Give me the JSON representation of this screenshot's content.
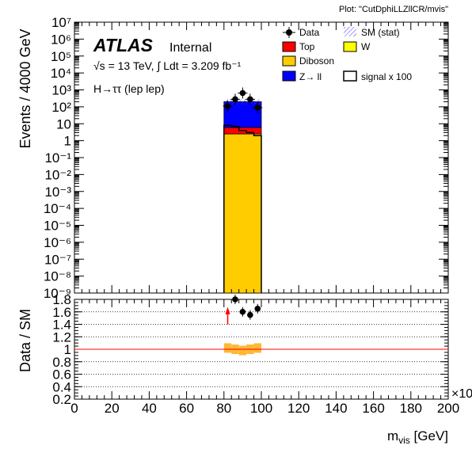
{
  "plot_label": "Plot: \"CutDphiLLZllCR/mvis\"",
  "atlas": {
    "brand": "ATLAS",
    "status": "Internal",
    "energy_line": "√s = 13 TeV, ∫ Ldt = 3.209 fb⁻¹",
    "channel": "H→ττ (lep lep)"
  },
  "legend": [
    {
      "label": "Data",
      "kind": "data",
      "color": "#000000"
    },
    {
      "label": "SM (stat)",
      "kind": "hatch",
      "color": "#3a3aff"
    },
    {
      "label": "Top",
      "kind": "fill",
      "color": "#ff0000"
    },
    {
      "label": "W",
      "kind": "fill",
      "color": "#ffff00"
    },
    {
      "label": "Diboson",
      "kind": "fill",
      "color": "#ffcc00"
    },
    {
      "label": "Z→ ll",
      "kind": "fill",
      "color": "#0000ff"
    },
    {
      "label": "signal x 100",
      "kind": "outline",
      "color": "#000000"
    }
  ],
  "chart_data": [
    {
      "type": "bar",
      "stacked": true,
      "ylabel": "Events / 4000 GeV",
      "yscale": "log",
      "ylim": [
        1e-09,
        10000000.0
      ],
      "xlim": [
        0,
        200
      ],
      "x_ticks": [
        "0",
        "20",
        "40",
        "60",
        "80",
        "100",
        "120",
        "140",
        "160",
        "180",
        "200"
      ],
      "y_tick_labels": [
        "10⁻⁹",
        "10⁻⁸",
        "10⁻⁷",
        "10⁻⁶",
        "10⁻⁵",
        "10⁻⁴",
        "10⁻³",
        "10⁻²",
        "10⁻¹",
        "1",
        "10",
        "10²",
        "10³",
        "10⁴",
        "10⁵",
        "10⁶",
        "10⁷"
      ],
      "bins": [
        [
          80,
          100
        ]
      ],
      "series": [
        {
          "name": "Diboson",
          "color": "#ffcc00",
          "values": [
            2.5
          ]
        },
        {
          "name": "Top",
          "color": "#ff0000",
          "values": [
            6
          ]
        },
        {
          "name": "Z→ ll",
          "color": "#0000ff",
          "values": [
            200
          ]
        }
      ],
      "data_points": {
        "x": [
          82,
          86,
          90,
          94,
          98
        ],
        "y": [
          110,
          280,
          650,
          280,
          90
        ]
      },
      "signal_x100_steps": {
        "x": [
          82,
          86,
          90,
          94,
          98
        ],
        "y": [
          8,
          7,
          4,
          3,
          2
        ]
      }
    },
    {
      "type": "scatter",
      "ylabel": "Data / SM",
      "ylim": [
        0.2,
        1.8
      ],
      "xlim": [
        0,
        200
      ],
      "xlabel": "m_vis [GeV]",
      "x_multiplier": "×10",
      "x_ticks": [
        "0",
        "20",
        "40",
        "60",
        "80",
        "100",
        "120",
        "140",
        "160",
        "180",
        "200"
      ],
      "y_ticks": [
        "0.2",
        "0.4",
        "0.6",
        "0.8",
        "1",
        "1.2",
        "1.4",
        "1.6",
        "1.8"
      ],
      "reference_line": 1.0,
      "ratio_points": {
        "x": [
          86,
          90,
          94,
          98
        ],
        "y": [
          1.8,
          1.6,
          1.55,
          1.65
        ]
      },
      "off_scale_arrow": {
        "x": 82,
        "direction": "up"
      },
      "sm_stat_band": {
        "x": [
          82,
          86,
          90,
          94,
          98
        ],
        "y": [
          1.02,
          1.0,
          0.98,
          1.0,
          1.02
        ]
      }
    }
  ]
}
